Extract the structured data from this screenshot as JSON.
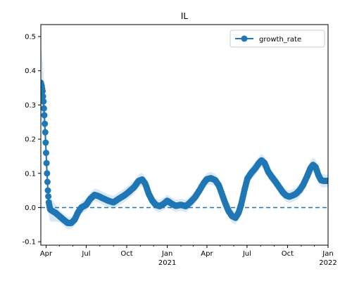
{
  "chart_data": {
    "type": "line",
    "title": "IL",
    "xlabel": "",
    "ylabel": "",
    "x_axis": {
      "type": "date",
      "range": [
        "2020-03-20",
        "2022-01-01"
      ],
      "ticks": [
        {
          "date": "2020-04-01",
          "label": "Apr"
        },
        {
          "date": "2020-07-01",
          "label": "Jul"
        },
        {
          "date": "2020-10-01",
          "label": "Oct"
        },
        {
          "date": "2021-01-01",
          "label": "Jan",
          "sublabel": "2021"
        },
        {
          "date": "2021-04-01",
          "label": "Apr"
        },
        {
          "date": "2021-07-01",
          "label": "Jul"
        },
        {
          "date": "2021-10-01",
          "label": "Oct"
        },
        {
          "date": "2022-01-01",
          "label": "Jan",
          "sublabel": "2022"
        }
      ]
    },
    "ylim": [
      -0.11,
      0.535
    ],
    "yticks": [
      "-0.1",
      "0.0",
      "0.1",
      "0.2",
      "0.3",
      "0.4",
      "0.5"
    ],
    "reference_line": {
      "y": 0.0,
      "style": "dashed"
    },
    "legend": {
      "placement": "top-right",
      "entries": [
        "growth_rate"
      ]
    },
    "colors": {
      "series": "#1f77b4",
      "band": "#dce9f5"
    },
    "series": [
      {
        "name": "growth_rate",
        "points": [
          [
            "2020-03-20",
            0.365
          ],
          [
            "2020-03-22",
            0.355
          ],
          [
            "2020-03-24",
            0.34
          ],
          [
            "2020-03-26",
            0.31
          ],
          [
            "2020-03-28",
            0.27
          ],
          [
            "2020-03-30",
            0.22
          ],
          [
            "2020-04-01",
            0.16
          ],
          [
            "2020-04-03",
            0.1
          ],
          [
            "2020-04-05",
            0.05
          ],
          [
            "2020-04-07",
            0.015
          ],
          [
            "2020-04-10",
            -0.005
          ],
          [
            "2020-04-15",
            -0.01
          ],
          [
            "2020-04-22",
            -0.015
          ],
          [
            "2020-05-01",
            -0.025
          ],
          [
            "2020-05-10",
            -0.035
          ],
          [
            "2020-05-20",
            -0.045
          ],
          [
            "2020-05-28",
            -0.045
          ],
          [
            "2020-06-05",
            -0.035
          ],
          [
            "2020-06-12",
            -0.015
          ],
          [
            "2020-06-20",
            0.0
          ],
          [
            "2020-07-01",
            0.008
          ],
          [
            "2020-07-10",
            0.025
          ],
          [
            "2020-07-20",
            0.037
          ],
          [
            "2020-07-28",
            0.034
          ],
          [
            "2020-08-08",
            0.027
          ],
          [
            "2020-08-20",
            0.02
          ],
          [
            "2020-09-01",
            0.015
          ],
          [
            "2020-09-12",
            0.025
          ],
          [
            "2020-09-25",
            0.035
          ],
          [
            "2020-10-05",
            0.045
          ],
          [
            "2020-10-18",
            0.06
          ],
          [
            "2020-10-28",
            0.078
          ],
          [
            "2020-11-05",
            0.082
          ],
          [
            "2020-11-12",
            0.07
          ],
          [
            "2020-11-20",
            0.04
          ],
          [
            "2020-11-28",
            0.02
          ],
          [
            "2020-12-06",
            0.008
          ],
          [
            "2020-12-15",
            0.004
          ],
          [
            "2020-12-25",
            0.012
          ],
          [
            "2021-01-01",
            0.02
          ],
          [
            "2021-01-10",
            0.012
          ],
          [
            "2021-01-20",
            0.005
          ],
          [
            "2021-02-01",
            0.008
          ],
          [
            "2021-02-12",
            0.004
          ],
          [
            "2021-02-22",
            0.015
          ],
          [
            "2021-03-05",
            0.03
          ],
          [
            "2021-03-15",
            0.05
          ],
          [
            "2021-03-25",
            0.072
          ],
          [
            "2021-04-01",
            0.083
          ],
          [
            "2021-04-10",
            0.086
          ],
          [
            "2021-04-20",
            0.08
          ],
          [
            "2021-04-28",
            0.065
          ],
          [
            "2021-05-05",
            0.04
          ],
          [
            "2021-05-12",
            0.015
          ],
          [
            "2021-05-20",
            -0.01
          ],
          [
            "2021-05-28",
            -0.025
          ],
          [
            "2021-06-05",
            -0.03
          ],
          [
            "2021-06-12",
            -0.015
          ],
          [
            "2021-06-18",
            0.01
          ],
          [
            "2021-06-25",
            0.05
          ],
          [
            "2021-07-02",
            0.085
          ],
          [
            "2021-07-10",
            0.1
          ],
          [
            "2021-07-20",
            0.115
          ],
          [
            "2021-07-28",
            0.13
          ],
          [
            "2021-08-03",
            0.138
          ],
          [
            "2021-08-10",
            0.13
          ],
          [
            "2021-08-18",
            0.105
          ],
          [
            "2021-08-26",
            0.09
          ],
          [
            "2021-09-04",
            0.075
          ],
          [
            "2021-09-12",
            0.06
          ],
          [
            "2021-09-20",
            0.045
          ],
          [
            "2021-09-28",
            0.035
          ],
          [
            "2021-10-05",
            0.032
          ],
          [
            "2021-10-12",
            0.035
          ],
          [
            "2021-10-20",
            0.04
          ],
          [
            "2021-10-28",
            0.05
          ],
          [
            "2021-11-05",
            0.065
          ],
          [
            "2021-11-14",
            0.09
          ],
          [
            "2021-11-22",
            0.115
          ],
          [
            "2021-11-28",
            0.125
          ],
          [
            "2021-12-04",
            0.118
          ],
          [
            "2021-12-10",
            0.095
          ],
          [
            "2021-12-16",
            0.08
          ],
          [
            "2021-12-22",
            0.078
          ],
          [
            "2022-01-01",
            0.078
          ]
        ],
        "band_halfwidth": [
          [
            "2020-03-20",
            0.11
          ],
          [
            "2020-04-05",
            0.04
          ],
          [
            "2020-05-01",
            0.018
          ],
          [
            "2020-07-01",
            0.018
          ],
          [
            "2020-10-01",
            0.02
          ],
          [
            "2021-01-01",
            0.018
          ],
          [
            "2021-04-01",
            0.018
          ],
          [
            "2021-07-01",
            0.02
          ],
          [
            "2021-10-01",
            0.018
          ],
          [
            "2021-12-01",
            0.022
          ],
          [
            "2022-01-01",
            0.018
          ]
        ]
      }
    ]
  }
}
